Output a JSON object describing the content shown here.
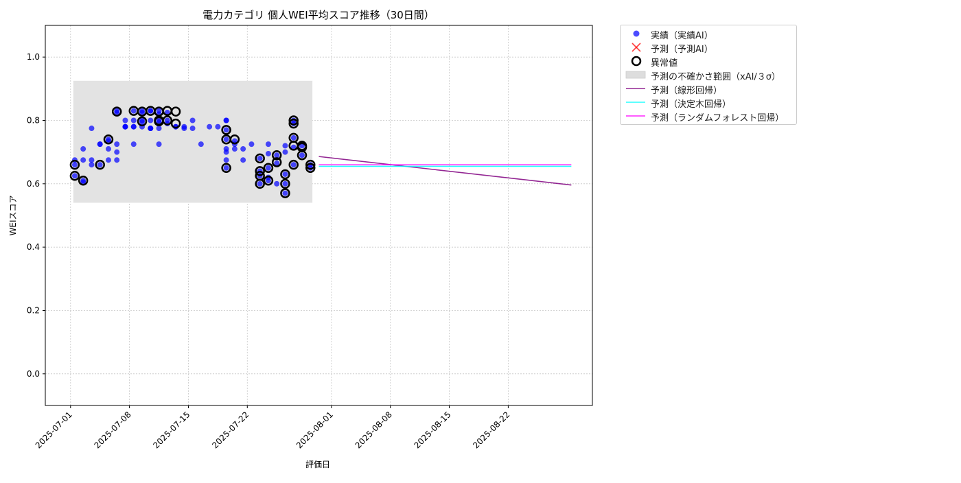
{
  "chart_data": {
    "type": "scatter",
    "title": "電力カテゴリ 個人WEI平均スコア推移（30日間）",
    "xlabel": "評価日",
    "ylabel": "WEIスコア",
    "xlim": [
      "2025-06-28",
      "2025-09-01"
    ],
    "ylim": [
      -0.1,
      1.1
    ],
    "yticks": [
      0.0,
      0.2,
      0.4,
      0.6,
      0.8,
      1.0
    ],
    "ytick_labels": [
      "0.0",
      "0.2",
      "0.4",
      "0.6",
      "0.8",
      "1.0"
    ],
    "xticks": [
      "2025-07-01",
      "2025-07-08",
      "2025-07-15",
      "2025-07-22",
      "2025-08-01",
      "2025-08-08",
      "2025-08-15",
      "2025-08-22"
    ],
    "grid": true,
    "legend_position": "outside upper right",
    "legend": [
      {
        "label": "実績（実績AI）",
        "kind": "marker-dot",
        "color": "#0000ff"
      },
      {
        "label": "予測（予測AI）",
        "kind": "marker-x",
        "color": "#ff0000"
      },
      {
        "label": "異常値",
        "kind": "marker-ring",
        "color": "#000000"
      },
      {
        "label": "予測の不確かさ範囲（xAI/３σ）",
        "kind": "band",
        "color": "#e3e3e3"
      },
      {
        "label": "予測（線形回帰）",
        "kind": "line",
        "color": "#800080"
      },
      {
        "label": "予測（決定木回帰）",
        "kind": "line",
        "color": "#00ffff"
      },
      {
        "label": "予測（ランダムフォレスト回帰）",
        "kind": "line",
        "color": "#ff00ff"
      }
    ],
    "uncertainty_band": {
      "x_start": "2025-07-01",
      "x_end": "2025-07-29",
      "y_low": 0.54,
      "y_high": 0.925
    },
    "actual": {
      "name": "実績（実績AI）",
      "color": "#0000ff",
      "points": [
        [
          "2025-07-01",
          0.66
        ],
        [
          "2025-07-01",
          0.625
        ],
        [
          "2025-07-01",
          0.675
        ],
        [
          "2025-07-02",
          0.61
        ],
        [
          "2025-07-02",
          0.71
        ],
        [
          "2025-07-02",
          0.605
        ],
        [
          "2025-07-02",
          0.675
        ],
        [
          "2025-07-03",
          0.675
        ],
        [
          "2025-07-03",
          0.775
        ],
        [
          "2025-07-03",
          0.66
        ],
        [
          "2025-07-04",
          0.725
        ],
        [
          "2025-07-04",
          0.66
        ],
        [
          "2025-07-04",
          0.725
        ],
        [
          "2025-07-05",
          0.675
        ],
        [
          "2025-07-05",
          0.71
        ],
        [
          "2025-07-05",
          0.74
        ],
        [
          "2025-07-05",
          0.735
        ],
        [
          "2025-07-06",
          0.725
        ],
        [
          "2025-07-06",
          0.7
        ],
        [
          "2025-07-06",
          0.675
        ],
        [
          "2025-07-06",
          0.825
        ],
        [
          "2025-07-06",
          0.83
        ],
        [
          "2025-07-07",
          0.8
        ],
        [
          "2025-07-07",
          0.78
        ],
        [
          "2025-07-07",
          0.78
        ],
        [
          "2025-07-07",
          0.78
        ],
        [
          "2025-07-08",
          0.78
        ],
        [
          "2025-07-08",
          0.8
        ],
        [
          "2025-07-08",
          0.725
        ],
        [
          "2025-07-08",
          0.83
        ],
        [
          "2025-07-08",
          0.78
        ],
        [
          "2025-07-09",
          0.78
        ],
        [
          "2025-07-09",
          0.83
        ],
        [
          "2025-07-09",
          0.825
        ],
        [
          "2025-07-09",
          0.795
        ],
        [
          "2025-07-09",
          0.8
        ],
        [
          "2025-07-10",
          0.775
        ],
        [
          "2025-07-10",
          0.775
        ],
        [
          "2025-07-10",
          0.775
        ],
        [
          "2025-07-10",
          0.8
        ],
        [
          "2025-07-10",
          0.83
        ],
        [
          "2025-07-10",
          0.83
        ],
        [
          "2025-07-11",
          0.775
        ],
        [
          "2025-07-11",
          0.725
        ],
        [
          "2025-07-11",
          0.82
        ],
        [
          "2025-07-11",
          0.795
        ],
        [
          "2025-07-11",
          0.8
        ],
        [
          "2025-07-11",
          0.83
        ],
        [
          "2025-07-12",
          0.8
        ],
        [
          "2025-07-12",
          0.825
        ],
        [
          "2025-07-12",
          0.79
        ],
        [
          "2025-07-13",
          0.78
        ],
        [
          "2025-07-13",
          0.78
        ],
        [
          "2025-07-14",
          0.78
        ],
        [
          "2025-07-14",
          0.775
        ],
        [
          "2025-07-15",
          0.8
        ],
        [
          "2025-07-15",
          0.775
        ],
        [
          "2025-07-16",
          0.725
        ],
        [
          "2025-07-17",
          0.78
        ],
        [
          "2025-07-18",
          0.78
        ],
        [
          "2025-07-19",
          0.8
        ],
        [
          "2025-07-19",
          0.8
        ],
        [
          "2025-07-19",
          0.77
        ],
        [
          "2025-07-19",
          0.71
        ],
        [
          "2025-07-19",
          0.7
        ],
        [
          "2025-07-19",
          0.65
        ],
        [
          "2025-07-19",
          0.675
        ],
        [
          "2025-07-19",
          0.74
        ],
        [
          "2025-07-20",
          0.735
        ],
        [
          "2025-07-20",
          0.725
        ],
        [
          "2025-07-20",
          0.71
        ],
        [
          "2025-07-21",
          0.71
        ],
        [
          "2025-07-21",
          0.675
        ],
        [
          "2025-07-22",
          0.725
        ],
        [
          "2025-07-23",
          0.6
        ],
        [
          "2025-07-23",
          0.625
        ],
        [
          "2025-07-23",
          0.64
        ],
        [
          "2025-07-23",
          0.68
        ],
        [
          "2025-07-24",
          0.65
        ],
        [
          "2025-07-24",
          0.61
        ],
        [
          "2025-07-24",
          0.62
        ],
        [
          "2025-07-24",
          0.695
        ],
        [
          "2025-07-24",
          0.725
        ],
        [
          "2025-07-25",
          0.665
        ],
        [
          "2025-07-25",
          0.69
        ],
        [
          "2025-07-25",
          0.6
        ],
        [
          "2025-07-26",
          0.57
        ],
        [
          "2025-07-26",
          0.63
        ],
        [
          "2025-07-26",
          0.6
        ],
        [
          "2025-07-26",
          0.7
        ],
        [
          "2025-07-26",
          0.72
        ],
        [
          "2025-07-27",
          0.745
        ],
        [
          "2025-07-27",
          0.66
        ],
        [
          "2025-07-27",
          0.715
        ],
        [
          "2025-07-27",
          0.8
        ],
        [
          "2025-07-27",
          0.79
        ],
        [
          "2025-07-28",
          0.72
        ],
        [
          "2025-07-28",
          0.69
        ],
        [
          "2025-07-29",
          0.66
        ],
        [
          "2025-07-29",
          0.65
        ]
      ]
    },
    "anomalies": {
      "name": "異常値",
      "color": "#000000",
      "points": [
        [
          "2025-07-01",
          0.66
        ],
        [
          "2025-07-01",
          0.625
        ],
        [
          "2025-07-02",
          0.61
        ],
        [
          "2025-07-04",
          0.66
        ],
        [
          "2025-07-05",
          0.74
        ],
        [
          "2025-07-06",
          0.828
        ],
        [
          "2025-07-08",
          0.83
        ],
        [
          "2025-07-09",
          0.828
        ],
        [
          "2025-07-09",
          0.797
        ],
        [
          "2025-07-10",
          0.83
        ],
        [
          "2025-07-11",
          0.828
        ],
        [
          "2025-07-11",
          0.797
        ],
        [
          "2025-07-11",
          0.8
        ],
        [
          "2025-07-12",
          0.83
        ],
        [
          "2025-07-12",
          0.8
        ],
        [
          "2025-07-13",
          0.828
        ],
        [
          "2025-07-13",
          0.79
        ],
        [
          "2025-07-19",
          0.77
        ],
        [
          "2025-07-19",
          0.74
        ],
        [
          "2025-07-19",
          0.65
        ],
        [
          "2025-07-20",
          0.74
        ],
        [
          "2025-07-23",
          0.68
        ],
        [
          "2025-07-23",
          0.64
        ],
        [
          "2025-07-23",
          0.625
        ],
        [
          "2025-07-23",
          0.6
        ],
        [
          "2025-07-24",
          0.65
        ],
        [
          "2025-07-24",
          0.61
        ],
        [
          "2025-07-25",
          0.69
        ],
        [
          "2025-07-25",
          0.668
        ],
        [
          "2025-07-26",
          0.63
        ],
        [
          "2025-07-26",
          0.6
        ],
        [
          "2025-07-26",
          0.57
        ],
        [
          "2025-07-27",
          0.745
        ],
        [
          "2025-07-27",
          0.72
        ],
        [
          "2025-07-27",
          0.66
        ],
        [
          "2025-07-27",
          0.8
        ],
        [
          "2025-07-27",
          0.79
        ],
        [
          "2025-07-28",
          0.715
        ],
        [
          "2025-07-28",
          0.72
        ],
        [
          "2025-07-28",
          0.69
        ],
        [
          "2025-07-29",
          0.66
        ],
        [
          "2025-07-29",
          0.65
        ]
      ]
    },
    "forecasts": [
      {
        "name": "予測（線形回帰）",
        "color": "#800080",
        "x": [
          "2025-07-30",
          "2025-08-29"
        ],
        "y": [
          0.686,
          0.596
        ]
      },
      {
        "name": "予測（決定木回帰）",
        "color": "#00ffff",
        "x": [
          "2025-07-30",
          "2025-08-29"
        ],
        "y": [
          0.655,
          0.655
        ]
      },
      {
        "name": "予測（ランダムフォレスト回帰）",
        "color": "#ff00ff",
        "x": [
          "2025-07-30",
          "2025-08-29"
        ],
        "y": [
          0.66,
          0.66
        ]
      }
    ]
  }
}
